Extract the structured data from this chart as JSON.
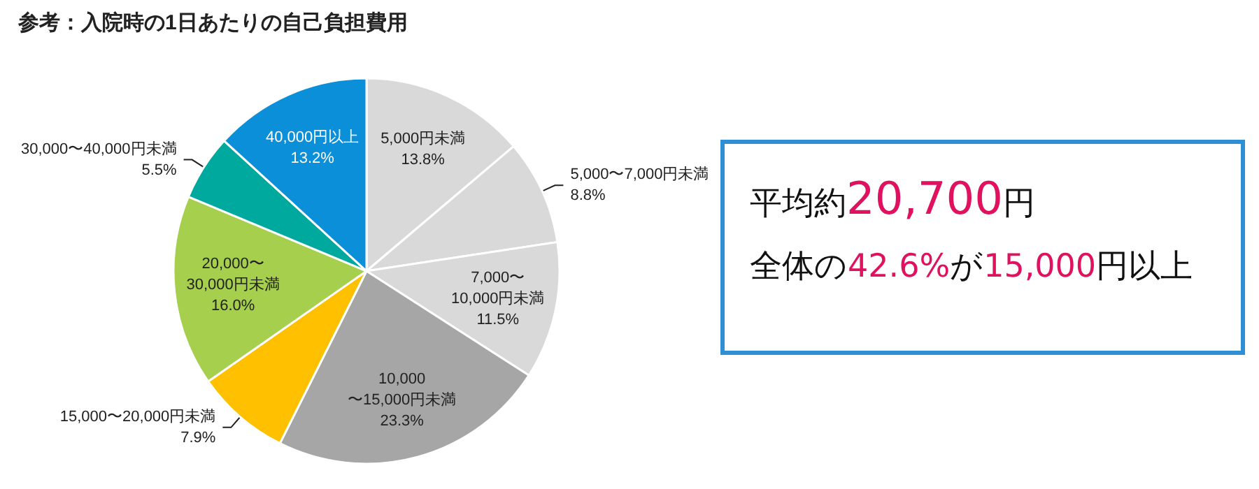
{
  "chart_data": [
    {
      "type": "pie",
      "title": "参考：入院時の1日あたりの自己負担費用",
      "categories": [
        "5,000円未満",
        "5,000〜7,000円未満",
        "7,000〜\n10,000円未満",
        "10,000\n〜15,000円未満",
        "15,000〜20,000円未満",
        "20,000〜\n30,000円未満",
        "30,000〜40,000円未満",
        "40,000円以上"
      ],
      "values": [
        13.8,
        8.8,
        11.5,
        23.3,
        7.9,
        16.0,
        5.5,
        13.2
      ],
      "value_labels": [
        "13.8%",
        "8.8%",
        "11.5%",
        "23.3%",
        "7.9%",
        "16.0%",
        "5.5%",
        "13.2%"
      ],
      "colors": [
        "#d9d9d9",
        "#d9d9d9",
        "#d9d9d9",
        "#a6a6a6",
        "#ffc000",
        "#a5cf4c",
        "#00a99d",
        "#0b8fd8"
      ]
    },
    {
      "type": "other",
      "annotations": [
        "平均約20,700円",
        "全体の42.6%が15,000円以上"
      ]
    }
  ]
}
